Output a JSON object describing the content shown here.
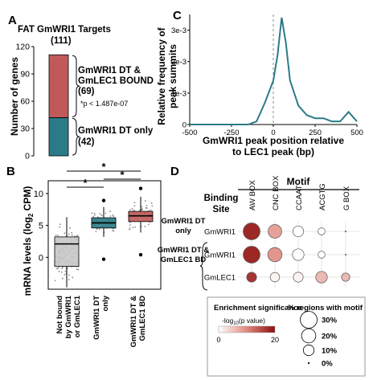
{
  "panel_letters": {
    "a": "A",
    "b": "B",
    "c": "C",
    "d": "D"
  },
  "colors": {
    "teal": "#2a7b87",
    "red": "#c05a5a",
    "grey": "#c8c8c8",
    "dark_red": "#8b1010",
    "dashed": "#888888"
  },
  "chart_data": [
    {
      "panel": "A",
      "type": "bar",
      "title": "FAT GmWRI1 Targets",
      "total_label": "(111)",
      "ylabel": "Number of genes",
      "ylim": [
        0,
        120
      ],
      "yticks": [
        "0",
        "30",
        "60",
        "90",
        "120"
      ],
      "series": [
        {
          "name": "GmWRI1 DT only",
          "value": 42,
          "count_label": "(42)",
          "color": "#2a7b87"
        },
        {
          "name": "GmWRI1 DT & GmLEC1 BOUND",
          "value": 69,
          "count_label": "(69)",
          "color": "#c05a5a"
        }
      ],
      "bracket_labels": {
        "top_line1": "GmWRI1 DT &",
        "top_line2": "GmLEC1 BOUND",
        "top_count": "(69)",
        "pvalue": "*p < 1.487e-07",
        "bottom_line1": "GmWRI1 DT only",
        "bottom_count": "(42)"
      }
    },
    {
      "panel": "B",
      "type": "box",
      "ylabel_main": "mRNA levels (log",
      "ylabel_sub": "2",
      "ylabel_end": " CPM)",
      "ylim": [
        -5,
        12
      ],
      "yticks": [
        "0",
        "5",
        "10"
      ],
      "categories": [
        {
          "label_lines": [
            "Not bound",
            "by GmWRI1",
            "or GmLEC1"
          ],
          "color": "#c8c8c8",
          "q1": -1.4,
          "median": 2.1,
          "q3": 3.2,
          "whisker_low": -4.7,
          "whisker_high": 6.3
        },
        {
          "label_lines": [
            "GmWRI1 DT",
            "only"
          ],
          "color": "#2a7b87",
          "q1": 4.6,
          "median": 5.4,
          "q3": 6.2,
          "whisker_low": 3.2,
          "whisker_high": 7.9,
          "outliers": [
            -0.3,
            8.9
          ]
        },
        {
          "label_lines": [
            "GmWRI1 DT &",
            "GmLEC1 BD"
          ],
          "color": "#c05a5a",
          "q1": 5.6,
          "median": 6.5,
          "q3": 7.2,
          "whisker_low": 3.9,
          "whisker_high": 9.5,
          "outliers": [
            10.8,
            0.4
          ]
        }
      ],
      "significance": [
        "*",
        "*",
        "*"
      ]
    },
    {
      "panel": "C",
      "type": "line",
      "xlabel_line1": "GmWRI1 peak position relative",
      "xlabel_line2": "to LEC1 peak (bp)",
      "ylabel_line1": "Relative frequency of",
      "ylabel_line2": "peak summits",
      "xlim": [
        -500,
        500
      ],
      "ylim": [
        0,
        0.0035
      ],
      "xticks": [
        "-500",
        "-250",
        "0",
        "250",
        "500"
      ],
      "yticks": [
        "0",
        "1e-3",
        "2e-3",
        "3e-3"
      ],
      "x": [
        -500,
        -250,
        -150,
        -100,
        -50,
        0,
        25,
        50,
        75,
        100,
        150,
        200,
        250,
        300,
        350,
        400,
        450,
        500
      ],
      "y": [
        0,
        0,
        0,
        0.0001,
        0.0007,
        0.0014,
        0.0022,
        0.0034,
        0.0026,
        0.0014,
        0.0006,
        0.0003,
        0.0002,
        0.0002,
        0.0001,
        0.0001,
        0.0004,
        0.0001
      ],
      "color": "#2a7b87"
    },
    {
      "panel": "D",
      "type": "dot",
      "column_header": "Motif",
      "binding_site_header_line1": "Binding",
      "binding_site_header_line2": "Site",
      "motifs": [
        "AW BOX",
        "CNC BOX",
        "CCAAT",
        "ACGTG",
        "G BOX"
      ],
      "groups": [
        {
          "label_lines": [
            "GmWRI1 DT",
            "only"
          ],
          "rows": [
            {
              "site": "GmWRI1",
              "percent": [
                30,
                18,
                10,
                3,
                0.5
              ],
              "significance": [
                18,
                8,
                0,
                0,
                0
              ]
            }
          ]
        },
        {
          "label_lines": [
            "GmWRI1 DT &",
            "GmLEC1 BD"
          ],
          "rows": [
            {
              "site": "GmWRI1",
              "percent": [
                30,
                20,
                12,
                3,
                0.5
              ],
              "significance": [
                18,
                9,
                0,
                0,
                0
              ]
            },
            {
              "site": "GmLEC1",
              "percent": [
                8,
                7,
                8,
                12,
                5
              ],
              "significance": [
                17,
                1,
                1,
                6,
                6
              ]
            }
          ]
        }
      ],
      "legend": {
        "color_title": "Enrichment significance",
        "color_subtitle_prefix": "-log",
        "color_subtitle_sub": "10",
        "color_subtitle_suffix": "(p value)",
        "color_min": "0",
        "color_max": "20",
        "size_title": "% regions with motif",
        "size_levels": [
          {
            "value": 30,
            "label": "30%"
          },
          {
            "value": 20,
            "label": "20%"
          },
          {
            "value": 10,
            "label": "10%"
          },
          {
            "value": 0.5,
            "label": "0%"
          }
        ]
      }
    }
  ]
}
